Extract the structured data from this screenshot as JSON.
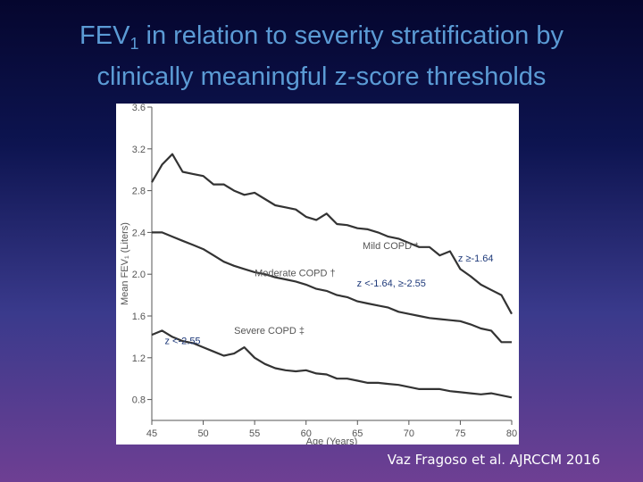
{
  "slide": {
    "title_part1": "FEV",
    "title_sub": "1",
    "title_part2": " in relation to severity stratification by",
    "title_line2": "clinically meaningful z-score thresholds",
    "citation": "Vaz Fragoso  et al. AJRCCM 2016"
  },
  "chart_data": {
    "type": "line",
    "xlabel": "Age (Years)",
    "ylabel": "Mean FEV₁ (Liters)",
    "xlim": [
      45,
      80
    ],
    "ylim": [
      0.6,
      3.6
    ],
    "xticks": [
      45,
      50,
      55,
      60,
      65,
      70,
      75,
      80
    ],
    "yticks": [
      3.6,
      3.2,
      2.8,
      2.4,
      2.0,
      1.6,
      1.2,
      0.8
    ],
    "ytick_labels": [
      "3.6",
      "3.2",
      "2.8",
      "2.4",
      "2.0",
      "1.6",
      "1.2",
      "0.8"
    ],
    "grid": false,
    "series": [
      {
        "name": "Mild COPD *",
        "threshold": "z ≥-1.64",
        "x": [
          45,
          46,
          47,
          48,
          49,
          50,
          51,
          52,
          53,
          54,
          55,
          56,
          57,
          58,
          59,
          60,
          61,
          62,
          63,
          64,
          65,
          66,
          67,
          68,
          69,
          70,
          71,
          72,
          73,
          74,
          75,
          76,
          77,
          78,
          79,
          80
        ],
        "values": [
          2.88,
          3.05,
          3.15,
          2.98,
          2.96,
          2.94,
          2.86,
          2.86,
          2.8,
          2.76,
          2.78,
          2.72,
          2.66,
          2.64,
          2.62,
          2.55,
          2.52,
          2.58,
          2.48,
          2.47,
          2.44,
          2.43,
          2.4,
          2.36,
          2.34,
          2.3,
          2.26,
          2.26,
          2.18,
          2.22,
          2.05,
          1.98,
          1.9,
          1.85,
          1.8,
          1.62
        ]
      },
      {
        "name": "Moderate COPD †",
        "threshold": "z <-1.64, ≥-2.55",
        "x": [
          45,
          46,
          47,
          48,
          49,
          50,
          51,
          52,
          53,
          54,
          55,
          56,
          57,
          58,
          59,
          60,
          61,
          62,
          63,
          64,
          65,
          66,
          67,
          68,
          69,
          70,
          71,
          72,
          73,
          74,
          75,
          76,
          77,
          78,
          79,
          80
        ],
        "values": [
          2.4,
          2.4,
          2.36,
          2.32,
          2.28,
          2.24,
          2.18,
          2.12,
          2.08,
          2.05,
          2.02,
          2.0,
          1.97,
          1.95,
          1.93,
          1.9,
          1.86,
          1.84,
          1.8,
          1.78,
          1.74,
          1.72,
          1.7,
          1.68,
          1.64,
          1.62,
          1.6,
          1.58,
          1.57,
          1.56,
          1.55,
          1.52,
          1.48,
          1.46,
          1.35,
          1.35
        ]
      },
      {
        "name": "Severe COPD ‡",
        "threshold": "z <-2.55",
        "x": [
          45,
          46,
          47,
          48,
          49,
          50,
          51,
          52,
          53,
          54,
          55,
          56,
          57,
          58,
          59,
          60,
          61,
          62,
          63,
          64,
          65,
          66,
          67,
          68,
          69,
          70,
          71,
          72,
          73,
          74,
          75,
          76,
          77,
          78,
          79,
          80
        ],
        "values": [
          1.42,
          1.46,
          1.4,
          1.36,
          1.34,
          1.3,
          1.26,
          1.22,
          1.24,
          1.3,
          1.2,
          1.14,
          1.1,
          1.08,
          1.07,
          1.08,
          1.05,
          1.04,
          1.0,
          1.0,
          0.98,
          0.96,
          0.96,
          0.95,
          0.94,
          0.92,
          0.9,
          0.9,
          0.9,
          0.88,
          0.87,
          0.86,
          0.85,
          0.86,
          0.84,
          0.82
        ]
      }
    ],
    "line_color": "#333333",
    "threshold_label_color": "#1f3a7a"
  }
}
